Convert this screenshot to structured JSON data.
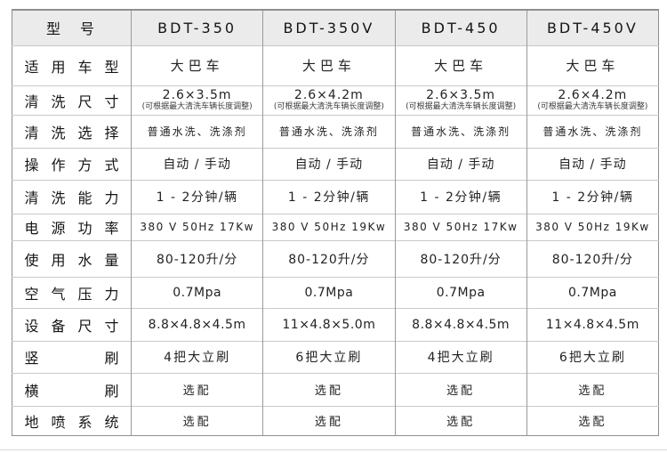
{
  "table": {
    "header": {
      "label": "型　号",
      "models": [
        "BDT-350",
        "BDT-350V",
        "BDT-450",
        "BDT-450V"
      ]
    },
    "rows": [
      {
        "label": "适用车型",
        "values": [
          "大巴车",
          "大巴车",
          "大巴车",
          "大巴车"
        ]
      },
      {
        "label": "清洗尺寸",
        "values": [
          "2.6×3.5m",
          "2.6×4.2m",
          "2.6×3.5m",
          "2.6×4.2m"
        ],
        "note": "(可根据最大清洗车辆长度调整)"
      },
      {
        "label": "清洗选择",
        "values": [
          "普通水洗、洗涤剂",
          "普通水洗、洗涤剂",
          "普通水洗、洗涤剂",
          "普通水洗、洗涤剂"
        ]
      },
      {
        "label": "操作方式",
        "values": [
          "自动 / 手动",
          "自动 / 手动",
          "自动 / 手动",
          "自动 / 手动"
        ]
      },
      {
        "label": "清洗能力",
        "values": [
          "1 - 2分钟/辆",
          "1 - 2分钟/辆",
          "1 - 2分钟/辆",
          "1 - 2分钟/辆"
        ]
      },
      {
        "label": "电源功率",
        "values": [
          "380 V 50Hz 17Kw",
          "380 V 50Hz 19Kw",
          "380 V 50Hz 17Kw",
          "380 V 50Hz 19Kw"
        ]
      },
      {
        "label": "使用水量",
        "values": [
          "80-120升/分",
          "80-120升/分",
          "80-120升/分",
          "80-120升/分"
        ]
      },
      {
        "label": "空气压力",
        "values": [
          "0.7Mpa",
          "0.7Mpa",
          "0.7Mpa",
          "0.7Mpa"
        ]
      },
      {
        "label": "设备尺寸",
        "values": [
          "8.8×4.8×4.5m",
          "11×4.8×5.0m",
          "8.8×4.8×4.5m",
          "11×4.8×4.5m"
        ]
      },
      {
        "label": "竖刷",
        "values": [
          "4把大立刷",
          "6把大立刷",
          "4把大立刷",
          "6把大立刷"
        ]
      },
      {
        "label": "横刷",
        "values": [
          "选配",
          "选配",
          "选配",
          "选配"
        ]
      },
      {
        "label": "地喷系统",
        "values": [
          "选配",
          "选配",
          "选配",
          "选配"
        ]
      }
    ],
    "colors": {
      "header_bg": "#ebebeb",
      "outer_border": "#8f8f8f",
      "column_divider": "#9a9a9a",
      "row_divider": "#c9c9c9",
      "text": "#141414"
    }
  }
}
